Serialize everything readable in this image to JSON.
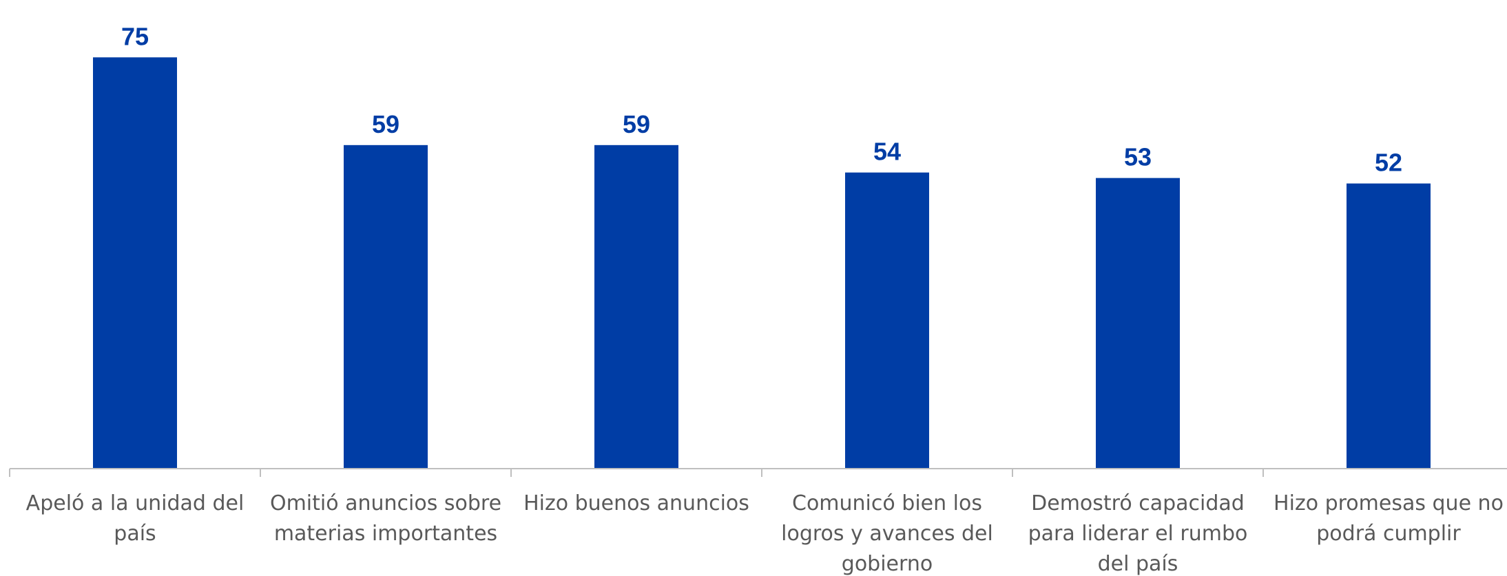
{
  "chart_data": {
    "type": "bar",
    "categories": [
      [
        "Apeló a la unidad del",
        "país"
      ],
      [
        "Omitió anuncios sobre",
        "materias importantes"
      ],
      [
        "Hizo buenos anuncios"
      ],
      [
        "Comunicó bien los",
        "logros y avances del",
        "gobierno"
      ],
      [
        "Demostró capacidad",
        "para liderar el rumbo",
        "del país"
      ],
      [
        "Hizo promesas que no",
        "podrá cumplir"
      ]
    ],
    "values": [
      75,
      59,
      59,
      54,
      53,
      52
    ],
    "ylim": [
      0,
      80
    ],
    "grid": false,
    "legend": "none",
    "colors": {
      "bar": "#003DA5",
      "label": "#003DA5",
      "axis": "#BFBFBF",
      "category_text": "#595959"
    }
  }
}
